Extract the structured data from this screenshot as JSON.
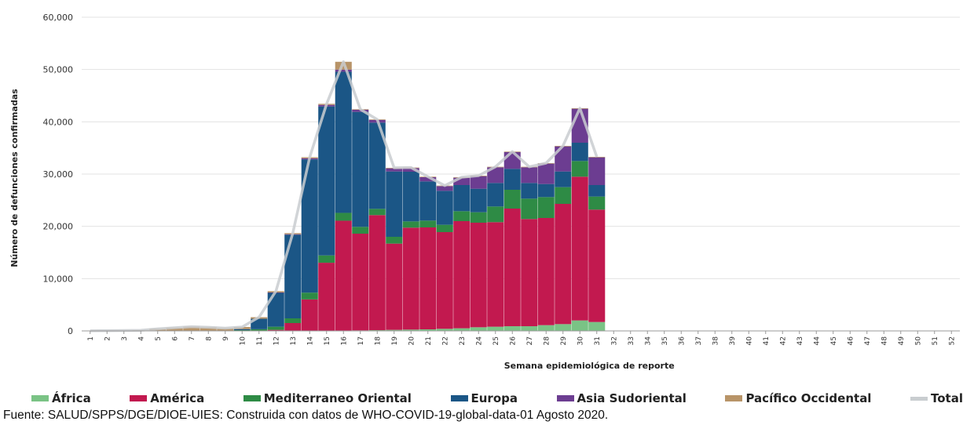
{
  "chart_data": {
    "type": "bar",
    "stacked": true,
    "xlabel": "Semana epidemiológica de reporte",
    "ylabel": "Número de defunciones confirmadas",
    "ylim": [
      0,
      60000
    ],
    "yticks": [
      0,
      10000,
      20000,
      30000,
      40000,
      50000,
      60000
    ],
    "ytick_labels": [
      "0",
      "10,000",
      "20,000",
      "30,000",
      "40,000",
      "50,000",
      "60,000"
    ],
    "grid": true,
    "legend_position": "bottom",
    "categories": [
      "1",
      "2",
      "3",
      "4",
      "5",
      "6",
      "7",
      "8",
      "9",
      "10",
      "11",
      "12",
      "13",
      "14",
      "15",
      "16",
      "17",
      "18",
      "19",
      "20",
      "21",
      "22",
      "23",
      "24",
      "25",
      "26",
      "27",
      "28",
      "29",
      "30",
      "31",
      "32",
      "33",
      "34",
      "35",
      "36",
      "37",
      "38",
      "39",
      "40",
      "41",
      "42",
      "43",
      "44",
      "45",
      "46",
      "47",
      "48",
      "49",
      "50",
      "51",
      "52"
    ],
    "series": [
      {
        "name": "África",
        "color": "#7ac385",
        "values": [
          0,
          0,
          0,
          0,
          0,
          0,
          0,
          0,
          0,
          0,
          0,
          0,
          0,
          20,
          40,
          80,
          100,
          150,
          200,
          250,
          300,
          400,
          500,
          700,
          800,
          900,
          900,
          1100,
          1300,
          2000,
          1700,
          0,
          0,
          0,
          0,
          0,
          0,
          0,
          0,
          0,
          0,
          0,
          0,
          0,
          0,
          0,
          0,
          0,
          0,
          0,
          0,
          0
        ]
      },
      {
        "name": "América",
        "color": "#c2194f",
        "values": [
          0,
          0,
          0,
          0,
          0,
          0,
          0,
          0,
          0,
          0,
          20,
          200,
          1500,
          6000,
          13000,
          21000,
          18500,
          22000,
          16500,
          19500,
          19500,
          18500,
          20500,
          20000,
          20000,
          22500,
          20500,
          20500,
          23000,
          27500,
          21500,
          0,
          0,
          0,
          0,
          0,
          0,
          0,
          0,
          0,
          0,
          0,
          0,
          0,
          0,
          0,
          0,
          0,
          0,
          0,
          0,
          0
        ]
      },
      {
        "name": "Mediterraneo Oriental",
        "color": "#2e8b45",
        "values": [
          0,
          0,
          0,
          0,
          0,
          0,
          0,
          0,
          30,
          150,
          300,
          600,
          900,
          1300,
          1400,
          1500,
          1300,
          1200,
          1300,
          1200,
          1300,
          1400,
          1900,
          2000,
          3000,
          3600,
          3900,
          4000,
          3200,
          3000,
          2500,
          0,
          0,
          0,
          0,
          0,
          0,
          0,
          0,
          0,
          0,
          0,
          0,
          0,
          0,
          0,
          0,
          0,
          0,
          0,
          0,
          0
        ]
      },
      {
        "name": "Europa",
        "color": "#1b5686",
        "values": [
          0,
          0,
          0,
          0,
          0,
          0,
          0,
          0,
          0,
          200,
          2000,
          6500,
          16000,
          25500,
          28500,
          27000,
          22000,
          16500,
          12500,
          9500,
          7500,
          6500,
          5000,
          4500,
          4500,
          4000,
          3000,
          2500,
          3000,
          3500,
          2200,
          0,
          0,
          0,
          0,
          0,
          0,
          0,
          0,
          0,
          0,
          0,
          0,
          0,
          0,
          0,
          0,
          0,
          0,
          0,
          0,
          0
        ]
      },
      {
        "name": "Asia Sudoriental",
        "color": "#6c3d91",
        "values": [
          0,
          0,
          0,
          0,
          0,
          0,
          0,
          0,
          0,
          0,
          0,
          50,
          100,
          200,
          300,
          400,
          400,
          500,
          600,
          700,
          800,
          900,
          1400,
          2400,
          3000,
          3200,
          3000,
          3900,
          4800,
          6500,
          5300,
          0,
          0,
          0,
          0,
          0,
          0,
          0,
          0,
          0,
          0,
          0,
          0,
          0,
          0,
          0,
          0,
          0,
          0,
          0,
          0,
          0
        ]
      },
      {
        "name": "Pacífico Occidental",
        "color": "#b89468",
        "values": [
          20,
          40,
          80,
          120,
          400,
          600,
          800,
          700,
          500,
          400,
          300,
          250,
          200,
          200,
          200,
          1500,
          100,
          100,
          100,
          100,
          100,
          100,
          100,
          100,
          100,
          100,
          100,
          100,
          100,
          100,
          100,
          0,
          0,
          0,
          0,
          0,
          0,
          0,
          0,
          0,
          0,
          0,
          0,
          0,
          0,
          0,
          0,
          0,
          0,
          0,
          0,
          0
        ]
      },
      {
        "name": "Total",
        "type": "line",
        "color": "#c9cdd0",
        "values": [
          20,
          40,
          80,
          120,
          400,
          600,
          800,
          700,
          530,
          750,
          2620,
          7600,
          18700,
          33200,
          43400,
          51500,
          42400,
          40450,
          31200,
          31250,
          29500,
          27800,
          29400,
          29700,
          31400,
          34300,
          31400,
          32100,
          35400,
          42600,
          33300,
          0,
          0,
          0,
          0,
          0,
          0,
          0,
          0,
          0,
          0,
          0,
          0,
          0,
          0,
          0,
          0,
          0,
          0,
          0,
          0,
          0
        ]
      }
    ]
  },
  "source": "Fuente: SALUD/SPPS/DGE/DIOE-UIES: Construida con datos de WHO-COVID-19-global-data-01 Agosto 2020."
}
